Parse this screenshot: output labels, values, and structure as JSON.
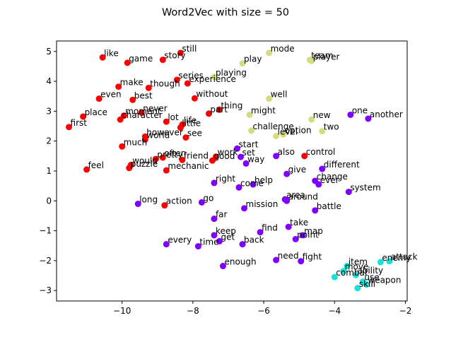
{
  "chart_data": {
    "type": "scatter",
    "title": "Word2Vec with size = 50",
    "xlabel": "",
    "ylabel": "",
    "xlim": [
      -11.85,
      -1.95
    ],
    "ylim": [
      -3.35,
      5.35
    ],
    "xticks": [
      -10,
      -8,
      -6,
      -4,
      -2
    ],
    "yticks": [
      -3,
      -2,
      -1,
      0,
      1,
      2,
      3,
      4,
      5
    ],
    "grid": false,
    "colors": {
      "red": "#ff0000",
      "purple": "#7f00ff",
      "olive": "#d4dd80",
      "cyan": "#1ae0d5"
    },
    "points": [
      {
        "word": "still",
        "x": -8.35,
        "y": 4.95,
        "color": "red"
      },
      {
        "word": "like",
        "x": -10.55,
        "y": 4.8,
        "color": "red"
      },
      {
        "word": "story",
        "x": -8.85,
        "y": 4.72,
        "color": "red"
      },
      {
        "word": "game",
        "x": -9.85,
        "y": 4.62,
        "color": "red"
      },
      {
        "word": "series",
        "x": -8.45,
        "y": 4.05,
        "color": "red"
      },
      {
        "word": "experience",
        "x": -8.15,
        "y": 3.93,
        "color": "red"
      },
      {
        "word": "make",
        "x": -10.1,
        "y": 3.82,
        "color": "red"
      },
      {
        "word": "though",
        "x": -9.25,
        "y": 3.78,
        "color": "red"
      },
      {
        "word": "best",
        "x": -9.7,
        "y": 3.38,
        "color": "red"
      },
      {
        "word": "even",
        "x": -10.65,
        "y": 3.42,
        "color": "red"
      },
      {
        "word": "without",
        "x": -7.95,
        "y": 3.43,
        "color": "red"
      },
      {
        "word": "thing",
        "x": -7.25,
        "y": 3.05,
        "color": "red"
      },
      {
        "word": "never",
        "x": -9.45,
        "y": 2.95,
        "color": "red"
      },
      {
        "word": "part",
        "x": -7.55,
        "y": 2.92,
        "color": "red"
      },
      {
        "word": "place",
        "x": -11.1,
        "y": 2.82,
        "color": "red"
      },
      {
        "word": "character",
        "x": -10.05,
        "y": 2.72,
        "color": "red"
      },
      {
        "word": "moment",
        "x": -9.95,
        "y": 2.85,
        "color": "red"
      },
      {
        "word": "lot",
        "x": -8.75,
        "y": 2.65,
        "color": "red"
      },
      {
        "word": "little",
        "x": -8.35,
        "y": 2.45,
        "color": "red"
      },
      {
        "word": "life",
        "x": -8.3,
        "y": 2.55,
        "color": "red"
      },
      {
        "word": "first",
        "x": -11.5,
        "y": 2.47,
        "color": "red"
      },
      {
        "word": "however",
        "x": -9.35,
        "y": 2.15,
        "color": "red"
      },
      {
        "word": "see",
        "x": -8.2,
        "y": 2.12,
        "color": "red"
      },
      {
        "word": "world",
        "x": -9.35,
        "y": 2.05,
        "color": "red"
      },
      {
        "word": "much",
        "x": -10.0,
        "y": 1.82,
        "color": "red"
      },
      {
        "word": "work",
        "x": -7.35,
        "y": 1.48,
        "color": "red"
      },
      {
        "word": "good",
        "x": -7.45,
        "y": 1.35,
        "color": "red"
      },
      {
        "word": "often",
        "x": -8.85,
        "y": 1.45,
        "color": "red"
      },
      {
        "word": "pretty",
        "x": -9.05,
        "y": 1.4,
        "color": "red"
      },
      {
        "word": "friend",
        "x": -8.3,
        "y": 1.37,
        "color": "red"
      },
      {
        "word": "would",
        "x": -9.75,
        "y": 1.2,
        "color": "red"
      },
      {
        "word": "puzzle",
        "x": -9.8,
        "y": 1.1,
        "color": "red"
      },
      {
        "word": "mechanic",
        "x": -8.75,
        "y": 1.02,
        "color": "red"
      },
      {
        "word": "feel",
        "x": -11.0,
        "y": 1.05,
        "color": "red"
      },
      {
        "word": "control",
        "x": -4.85,
        "y": 1.5,
        "color": "red"
      },
      {
        "word": "action",
        "x": -8.8,
        "y": -0.15,
        "color": "red"
      },
      {
        "word": "mode",
        "x": -5.85,
        "y": 4.95,
        "color": "olive"
      },
      {
        "word": "team",
        "x": -4.7,
        "y": 4.72,
        "color": "olive"
      },
      {
        "word": "player",
        "x": -4.65,
        "y": 4.68,
        "color": "olive"
      },
      {
        "word": "play",
        "x": -6.6,
        "y": 4.6,
        "color": "olive"
      },
      {
        "word": "playing",
        "x": -7.4,
        "y": 4.15,
        "color": "olive"
      },
      {
        "word": "well",
        "x": -5.85,
        "y": 3.42,
        "color": "olive"
      },
      {
        "word": "might",
        "x": -6.4,
        "y": 2.88,
        "color": "olive"
      },
      {
        "word": "new",
        "x": -4.65,
        "y": 2.72,
        "color": "olive"
      },
      {
        "word": "challenge",
        "x": -6.35,
        "y": 2.35,
        "color": "olive"
      },
      {
        "word": "two",
        "x": -4.35,
        "y": 2.33,
        "color": "olive"
      },
      {
        "word": "level",
        "x": -5.65,
        "y": 2.17,
        "color": "olive"
      },
      {
        "word": "option",
        "x": -5.45,
        "y": 2.22,
        "color": "olive"
      },
      {
        "word": "one",
        "x": -3.55,
        "y": 2.88,
        "color": "purple"
      },
      {
        "word": "another",
        "x": -3.05,
        "y": 2.75,
        "color": "purple"
      },
      {
        "word": "start",
        "x": -6.75,
        "y": 1.75,
        "color": "purple"
      },
      {
        "word": "set",
        "x": -6.65,
        "y": 1.47,
        "color": "purple"
      },
      {
        "word": "also",
        "x": -5.65,
        "y": 1.5,
        "color": "purple"
      },
      {
        "word": "way",
        "x": -6.5,
        "y": 1.25,
        "color": "purple"
      },
      {
        "word": "different",
        "x": -4.35,
        "y": 1.07,
        "color": "purple"
      },
      {
        "word": "give",
        "x": -5.35,
        "y": 0.9,
        "color": "purple"
      },
      {
        "word": "change",
        "x": -4.55,
        "y": 0.67,
        "color": "purple"
      },
      {
        "word": "ever",
        "x": -4.45,
        "y": 0.55,
        "color": "purple"
      },
      {
        "word": "right",
        "x": -7.4,
        "y": 0.6,
        "color": "purple"
      },
      {
        "word": "help",
        "x": -6.3,
        "y": 0.55,
        "color": "purple"
      },
      {
        "word": "come",
        "x": -6.7,
        "y": 0.45,
        "color": "purple"
      },
      {
        "word": "system",
        "x": -3.6,
        "y": 0.3,
        "color": "purple"
      },
      {
        "word": "area",
        "x": -5.4,
        "y": 0.05,
        "color": "purple"
      },
      {
        "word": "around",
        "x": -5.35,
        "y": 0.0,
        "color": "purple"
      },
      {
        "word": "go",
        "x": -7.75,
        "y": -0.05,
        "color": "purple"
      },
      {
        "word": "long",
        "x": -9.55,
        "y": -0.1,
        "color": "purple"
      },
      {
        "word": "mission",
        "x": -6.55,
        "y": -0.25,
        "color": "purple"
      },
      {
        "word": "battle",
        "x": -4.55,
        "y": -0.32,
        "color": "purple"
      },
      {
        "word": "far",
        "x": -7.4,
        "y": -0.6,
        "color": "purple"
      },
      {
        "word": "take",
        "x": -5.3,
        "y": -0.87,
        "color": "purple"
      },
      {
        "word": "find",
        "x": -6.1,
        "y": -1.05,
        "color": "purple"
      },
      {
        "word": "keep",
        "x": -7.4,
        "y": -1.15,
        "color": "purple"
      },
      {
        "word": "map",
        "x": -4.9,
        "y": -1.15,
        "color": "purple"
      },
      {
        "word": "point",
        "x": -5.1,
        "y": -1.28,
        "color": "purple"
      },
      {
        "word": "get",
        "x": -7.25,
        "y": -1.35,
        "color": "purple"
      },
      {
        "word": "every",
        "x": -8.75,
        "y": -1.45,
        "color": "purple"
      },
      {
        "word": "back",
        "x": -6.6,
        "y": -1.45,
        "color": "purple"
      },
      {
        "word": "time",
        "x": -7.85,
        "y": -1.52,
        "color": "purple"
      },
      {
        "word": "need",
        "x": -5.65,
        "y": -1.98,
        "color": "purple"
      },
      {
        "word": "fight",
        "x": -4.95,
        "y": -2.02,
        "color": "purple"
      },
      {
        "word": "enough",
        "x": -7.15,
        "y": -2.18,
        "color": "purple"
      },
      {
        "word": "attack",
        "x": -2.45,
        "y": -2.02,
        "color": "cyan"
      },
      {
        "word": "enemy",
        "x": -2.7,
        "y": -2.05,
        "color": "cyan"
      },
      {
        "word": "item",
        "x": -3.65,
        "y": -2.18,
        "color": "cyan"
      },
      {
        "word": "move",
        "x": -3.75,
        "y": -2.35,
        "color": "cyan"
      },
      {
        "word": "ability",
        "x": -3.4,
        "y": -2.48,
        "color": "cyan"
      },
      {
        "word": "combat",
        "x": -4.0,
        "y": -2.55,
        "color": "cyan"
      },
      {
        "word": "use",
        "x": -3.2,
        "y": -2.7,
        "color": "cyan"
      },
      {
        "word": "weapon",
        "x": -3.1,
        "y": -2.8,
        "color": "cyan"
      },
      {
        "word": "skill",
        "x": -3.35,
        "y": -2.92,
        "color": "cyan"
      }
    ]
  }
}
